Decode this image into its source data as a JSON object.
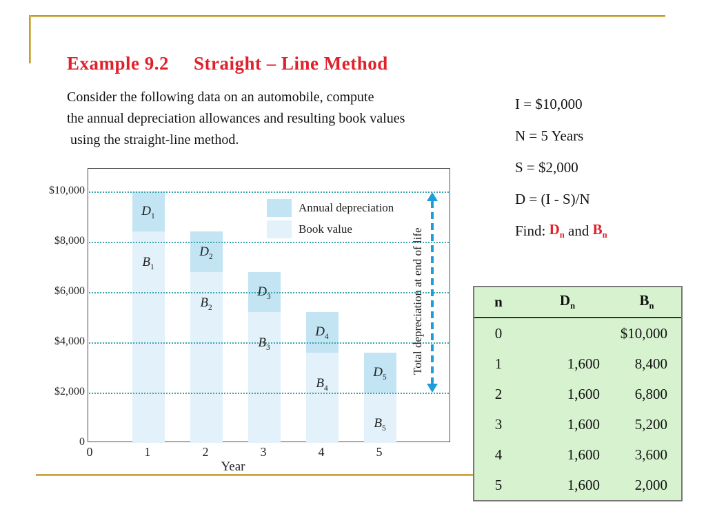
{
  "slide": {
    "title_left": "Example  9.2",
    "title_right": "Straight – Line Method",
    "title_color": "#e0202a",
    "accent_gold": "#c49b33",
    "body_lines": [
      "Consider the following data on an automobile, compute",
      "the annual depreciation allowances and resulting book values",
      " using the straight-line method."
    ],
    "givens": {
      "line_i": "I = $10,000",
      "line_n": "N = 5 Years",
      "line_s": "S = $2,000",
      "line_d": "D = (I - S)/N",
      "find_prefix": "Find: ",
      "find_d": "D",
      "find_d_sub": "n",
      "find_and": " and ",
      "find_b": "B",
      "find_b_sub": "n",
      "find_color": "#e0202a"
    }
  },
  "chart_data": {
    "type": "bar",
    "stacked": true,
    "title": "",
    "xlabel": "Year",
    "ylabel": "",
    "categories": [
      1,
      2,
      3,
      4,
      5
    ],
    "series": [
      {
        "name": "Annual depreciation",
        "letter": "D",
        "values": [
          1600,
          1600,
          1600,
          1600,
          1600
        ],
        "color": "#c2e4f3"
      },
      {
        "name": "Book value",
        "letter": "B",
        "values": [
          8400,
          6800,
          5200,
          3600,
          2000
        ],
        "color": "#e2f1fa"
      }
    ],
    "bar_top_totals": [
      10000,
      8400,
      6800,
      5200,
      3600
    ],
    "ylim": [
      0,
      10900
    ],
    "yticks": [
      {
        "value": 10000,
        "label": "$10,000"
      },
      {
        "value": 8000,
        "label": "$8,000"
      },
      {
        "value": 6000,
        "label": "$6,000"
      },
      {
        "value": 4000,
        "label": "$4,000"
      },
      {
        "value": 2000,
        "label": "$2,000"
      },
      {
        "value": 0,
        "label": "0"
      }
    ],
    "xticks": [
      "0",
      "1",
      "2",
      "3",
      "4",
      "5"
    ],
    "grid": "horizontal dotted",
    "gridline_color": "#3aa5ad",
    "legend_position": "inside top-right",
    "annotation": {
      "label": "Total depreciation at end of life",
      "from_value": 10000,
      "to_value": 2000,
      "style": "vertical double-headed dashed arrow",
      "color": "#1d9dd9"
    }
  },
  "table": {
    "bg_color": "#d6f2ce",
    "border_color": "#777777",
    "headers": {
      "n": "n",
      "d": "D",
      "d_sub": "n",
      "b": "B",
      "b_sub": "n"
    },
    "rows": [
      {
        "n": "0",
        "d": "",
        "b": "$10,000"
      },
      {
        "n": "1",
        "d": "1,600",
        "b": "8,400"
      },
      {
        "n": "2",
        "d": "1,600",
        "b": "6,800"
      },
      {
        "n": "3",
        "d": "1,600",
        "b": "5,200"
      },
      {
        "n": "4",
        "d": "1,600",
        "b": "3,600"
      },
      {
        "n": "5",
        "d": "1,600",
        "b": "2,000"
      }
    ]
  }
}
